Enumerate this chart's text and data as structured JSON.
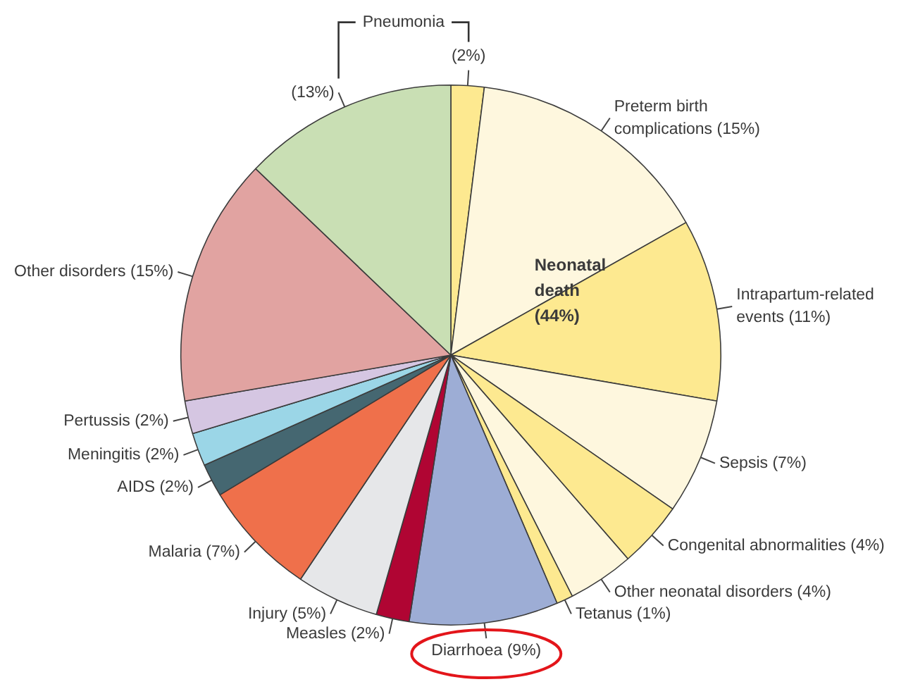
{
  "chart_data": {
    "type": "pie",
    "categories": [
      null,
      "Preterm birth complications",
      "Intrapartum-related events",
      "Sepsis",
      "Congenital abnormalities",
      "Other neonatal disorders",
      "Tetanus",
      "Diarrhoea",
      "Measles",
      "Injury",
      "Malaria",
      "AIDS",
      "Meningitis",
      "Pertussis",
      "Other disorders",
      null
    ],
    "values": [
      2,
      15,
      11,
      7,
      4,
      4,
      1,
      9,
      2,
      5,
      7,
      2,
      2,
      2,
      15,
      13
    ],
    "value_labels": [
      "(2%)",
      "(15%)",
      "(11%)",
      "(7%)",
      "(4%)",
      "(4%)",
      "(1%)",
      "(9%)",
      "(2%)",
      "(5%)",
      "(7%)",
      "(2%)",
      "(2%)",
      "(2%)",
      "(15%)",
      "(13%)"
    ],
    "colors": [
      "#fde990",
      "#fef7de",
      "#fde990",
      "#fef7de",
      "#fde990",
      "#fef7de",
      "#fde990",
      "#9dadd5",
      "#b00533",
      "#e6e7e9",
      "#ef704b",
      "#456771",
      "#9bd6e7",
      "#d5c6e2",
      "#e1a3a1",
      "#c9dfb4"
    ],
    "annotations": [
      "Pneumonia",
      "Neonatal death (44%)"
    ]
  }
}
